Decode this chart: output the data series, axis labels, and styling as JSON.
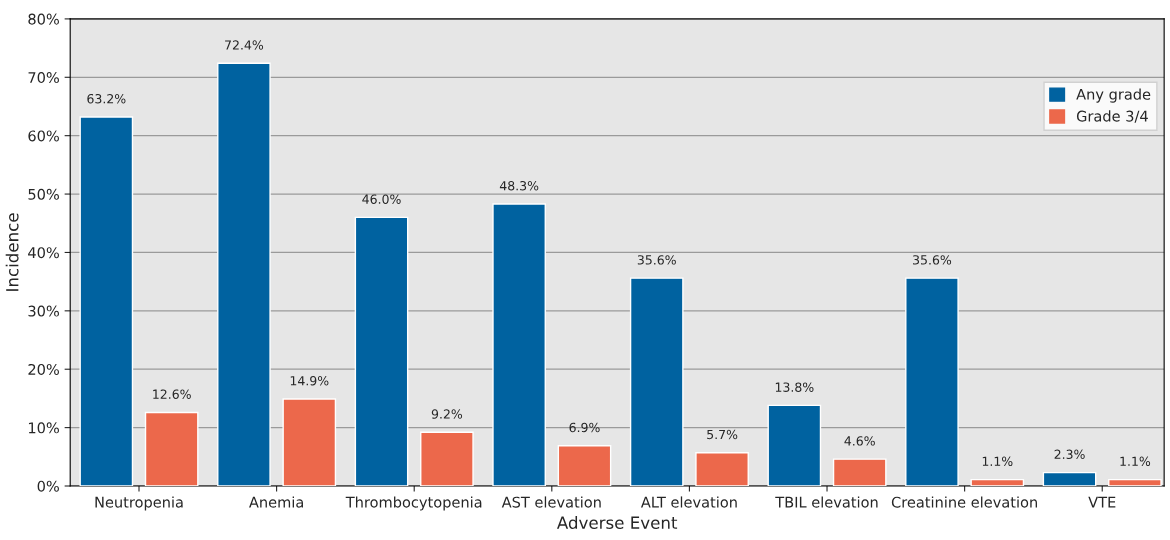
{
  "chart_data": {
    "type": "bar",
    "xlabel": "Adverse Event",
    "ylabel": "Incidence",
    "categories": [
      "Neutropenia",
      "Anemia",
      "Thrombocytopenia",
      "AST elevation",
      "ALT elevation",
      "TBIL elevation",
      "Creatinine elevation",
      "VTE"
    ],
    "series": [
      {
        "name": "Any grade",
        "color": "#0062a0",
        "values": [
          63.2,
          72.4,
          46.0,
          48.3,
          35.6,
          13.8,
          35.6,
          2.3
        ],
        "value_labels": [
          "63.2%",
          "72.4%",
          "46.0%",
          "48.3%",
          "35.6%",
          "13.8%",
          "35.6%",
          "2.3%"
        ]
      },
      {
        "name": "Grade 3/4",
        "color": "#ec684b",
        "values": [
          12.6,
          14.9,
          9.2,
          6.9,
          5.7,
          4.6,
          1.1,
          1.1
        ],
        "value_labels": [
          "12.6%",
          "14.9%",
          "9.2%",
          "6.9%",
          "5.7%",
          "4.6%",
          "1.1%",
          "1.1%"
        ]
      }
    ],
    "ylim": [
      0,
      80
    ],
    "yticks": [
      {
        "value": 0,
        "label": "0%"
      },
      {
        "value": 10,
        "label": "10%"
      },
      {
        "value": 20,
        "label": "20%"
      },
      {
        "value": 30,
        "label": "30%"
      },
      {
        "value": 40,
        "label": "40%"
      },
      {
        "value": 50,
        "label": "50%"
      },
      {
        "value": 60,
        "label": "60%"
      },
      {
        "value": 70,
        "label": "70%"
      },
      {
        "value": 80,
        "label": "80%"
      }
    ],
    "grid": "y",
    "legend": "top right"
  }
}
